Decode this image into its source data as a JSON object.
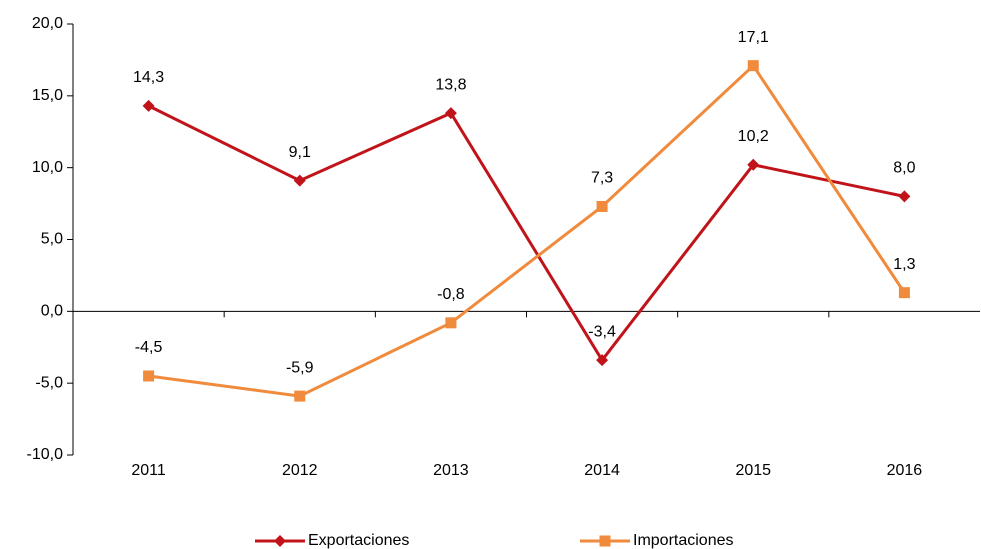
{
  "chart_data": {
    "type": "line",
    "categories": [
      "2011",
      "2012",
      "2013",
      "2014",
      "2015",
      "2016"
    ],
    "series": [
      {
        "name": "Exportaciones",
        "color": "#c0141a",
        "marker": "diamond",
        "values": [
          14.3,
          9.1,
          13.8,
          -3.4,
          10.2,
          8.0
        ],
        "value_labels": [
          "14,3",
          "9,1",
          "13,8",
          "-3,4",
          "10,2",
          "8,0"
        ]
      },
      {
        "name": "Importaciones",
        "color": "#f08a3c",
        "marker": "square",
        "values": [
          -4.5,
          -5.9,
          -0.8,
          7.3,
          17.1,
          1.3
        ],
        "value_labels": [
          "-4,5",
          "-5,9",
          "-0,8",
          "7,3",
          "17,1",
          "1,3"
        ]
      }
    ],
    "ylim": [
      -10,
      20
    ],
    "yticks": [
      {
        "value": -10,
        "label": "-10,0"
      },
      {
        "value": -5,
        "label": "-5,0"
      },
      {
        "value": 0,
        "label": "0,0"
      },
      {
        "value": 5,
        "label": "5,0"
      },
      {
        "value": 10,
        "label": "10,0"
      },
      {
        "value": 15,
        "label": "15,0"
      },
      {
        "value": 20,
        "label": "20,0"
      }
    ],
    "legend": "bottom"
  }
}
